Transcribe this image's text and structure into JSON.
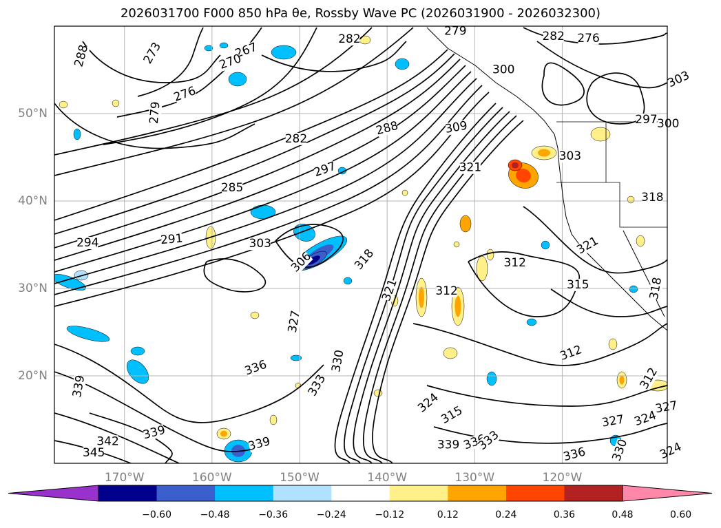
{
  "title": "2026031700 F000 850 hPa θe, Rossby Wave PC (2026031900 - 2026032300)",
  "map": {
    "lon_range": [
      -178,
      -108
    ],
    "lat_range": [
      10,
      60
    ],
    "lat_ticks": [
      {
        "value": 20,
        "label": "20°N"
      },
      {
        "value": 30,
        "label": "30°N"
      },
      {
        "value": 40,
        "label": "40°N"
      },
      {
        "value": 50,
        "label": "50°N"
      }
    ],
    "lon_ticks": [
      {
        "value": -170,
        "label": "170°W"
      },
      {
        "value": -160,
        "label": "160°W"
      },
      {
        "value": -150,
        "label": "150°W"
      },
      {
        "value": -140,
        "label": "140°W"
      },
      {
        "value": -130,
        "label": "130°W"
      },
      {
        "value": -120,
        "label": "120°W"
      }
    ],
    "grid": true,
    "tick_label_color": "#808080"
  },
  "colorbar": {
    "colors": [
      "#9932cc",
      "#00008b",
      "#3a5fcd",
      "#00bfff",
      "#b0e2ff",
      "#ffffff",
      "#fff08a",
      "#ffa500",
      "#ff4500",
      "#b22222",
      "#ff88aa"
    ],
    "tick_labels": [
      "−0.60",
      "−0.48",
      "−0.36",
      "−0.24",
      "−0.12",
      "0.12",
      "0.24",
      "0.36",
      "0.48",
      "0.60"
    ],
    "extend": "both"
  },
  "contour_labels": [
    {
      "text": "288",
      "lon": -174.9,
      "lat": 56.6,
      "rot": 75
    },
    {
      "text": "273",
      "lon": -166.8,
      "lat": 56.9,
      "rot": 60
    },
    {
      "text": "267",
      "lon": -156.1,
      "lat": 57.2,
      "rot": 20
    },
    {
      "text": "270",
      "lon": -157.9,
      "lat": 55.9,
      "rot": 20
    },
    {
      "text": "276",
      "lon": -163.1,
      "lat": 52.2,
      "rot": 20
    },
    {
      "text": "279",
      "lon": -166.5,
      "lat": 50.1,
      "rot": 85
    },
    {
      "text": "282",
      "lon": -144.3,
      "lat": 58.5,
      "rot": 0
    },
    {
      "text": "279",
      "lon": -132.2,
      "lat": 59.4,
      "rot": 0
    },
    {
      "text": "282",
      "lon": -121.0,
      "lat": 58.8,
      "rot": 0
    },
    {
      "text": "276",
      "lon": -117.0,
      "lat": 58.6,
      "rot": 0
    },
    {
      "text": "300",
      "lon": -126.7,
      "lat": 55.0,
      "rot": 0
    },
    {
      "text": "303",
      "lon": -106.7,
      "lat": 53.9,
      "rot": 25
    },
    {
      "text": "282",
      "lon": -150.4,
      "lat": 47.1,
      "rot": 0
    },
    {
      "text": "288",
      "lon": -140.0,
      "lat": 48.3,
      "rot": 15
    },
    {
      "text": "309",
      "lon": -132.1,
      "lat": 48.4,
      "rot": 10
    },
    {
      "text": "297",
      "lon": -147.1,
      "lat": 43.6,
      "rot": 20
    },
    {
      "text": "285",
      "lon": -157.7,
      "lat": 41.5,
      "rot": 0
    },
    {
      "text": "321",
      "lon": -130.5,
      "lat": 43.8,
      "rot": 0
    },
    {
      "text": "303",
      "lon": -119.1,
      "lat": 45.1,
      "rot": 0
    },
    {
      "text": "297",
      "lon": -110.4,
      "lat": 49.3,
      "rot": 0
    },
    {
      "text": "300",
      "lon": -107.9,
      "lat": 48.8,
      "rot": 0
    },
    {
      "text": "318",
      "lon": -109.7,
      "lat": 40.4,
      "rot": 0
    },
    {
      "text": "294",
      "lon": -174.2,
      "lat": 35.2,
      "rot": 0
    },
    {
      "text": "291",
      "lon": -164.6,
      "lat": 35.6,
      "rot": 5
    },
    {
      "text": "303",
      "lon": -154.5,
      "lat": 35.1,
      "rot": 0
    },
    {
      "text": "306",
      "lon": -149.8,
      "lat": 33.0,
      "rot": 45
    },
    {
      "text": "318",
      "lon": -142.6,
      "lat": 33.3,
      "rot": 50
    },
    {
      "text": "312",
      "lon": -125.4,
      "lat": 32.9,
      "rot": 0
    },
    {
      "text": "321",
      "lon": -117.1,
      "lat": 34.9,
      "rot": 30
    },
    {
      "text": "315",
      "lon": -118.2,
      "lat": 30.4,
      "rot": 0
    },
    {
      "text": "318",
      "lon": -109.3,
      "lat": 30.0,
      "rot": 80
    },
    {
      "text": "312",
      "lon": -133.2,
      "lat": 29.7,
      "rot": 0
    },
    {
      "text": "321",
      "lon": -139.7,
      "lat": 29.8,
      "rot": 70
    },
    {
      "text": "327",
      "lon": -150.6,
      "lat": 26.2,
      "rot": 80
    },
    {
      "text": "312",
      "lon": -119.0,
      "lat": 22.6,
      "rot": 20
    },
    {
      "text": "312",
      "lon": -110.1,
      "lat": 19.7,
      "rot": 60
    },
    {
      "text": "330",
      "lon": -145.6,
      "lat": 21.7,
      "rot": 80
    },
    {
      "text": "336",
      "lon": -155.0,
      "lat": 20.9,
      "rot": 20
    },
    {
      "text": "333",
      "lon": -148.0,
      "lat": 18.9,
      "rot": 60
    },
    {
      "text": "339",
      "lon": -175.2,
      "lat": 18.8,
      "rot": 80
    },
    {
      "text": "324",
      "lon": -135.3,
      "lat": 16.9,
      "rot": 40
    },
    {
      "text": "315",
      "lon": -132.6,
      "lat": 15.5,
      "rot": 30
    },
    {
      "text": "327",
      "lon": -108.1,
      "lat": 16.4,
      "rot": 10
    },
    {
      "text": "327",
      "lon": -114.2,
      "lat": 14.8,
      "rot": 10
    },
    {
      "text": "324",
      "lon": -110.5,
      "lat": 15.1,
      "rot": 20
    },
    {
      "text": "339",
      "lon": -166.6,
      "lat": 13.5,
      "rot": 15
    },
    {
      "text": "342",
      "lon": -171.9,
      "lat": 12.5,
      "rot": 0
    },
    {
      "text": "339",
      "lon": -154.6,
      "lat": 12.2,
      "rot": 15
    },
    {
      "text": "339",
      "lon": -133.0,
      "lat": 12.1,
      "rot": 0
    },
    {
      "text": "336",
      "lon": -130.0,
      "lat": 12.4,
      "rot": 20
    },
    {
      "text": "333",
      "lon": -128.4,
      "lat": 12.6,
      "rot": 40
    },
    {
      "text": "345",
      "lon": -173.5,
      "lat": 11.2,
      "rot": 0
    },
    {
      "text": "336",
      "lon": -118.6,
      "lat": 11.0,
      "rot": 15
    },
    {
      "text": "330",
      "lon": -113.4,
      "lat": 11.5,
      "rot": 70
    },
    {
      "text": "324",
      "lon": -107.6,
      "lat": 11.4,
      "rot": 25
    }
  ]
}
